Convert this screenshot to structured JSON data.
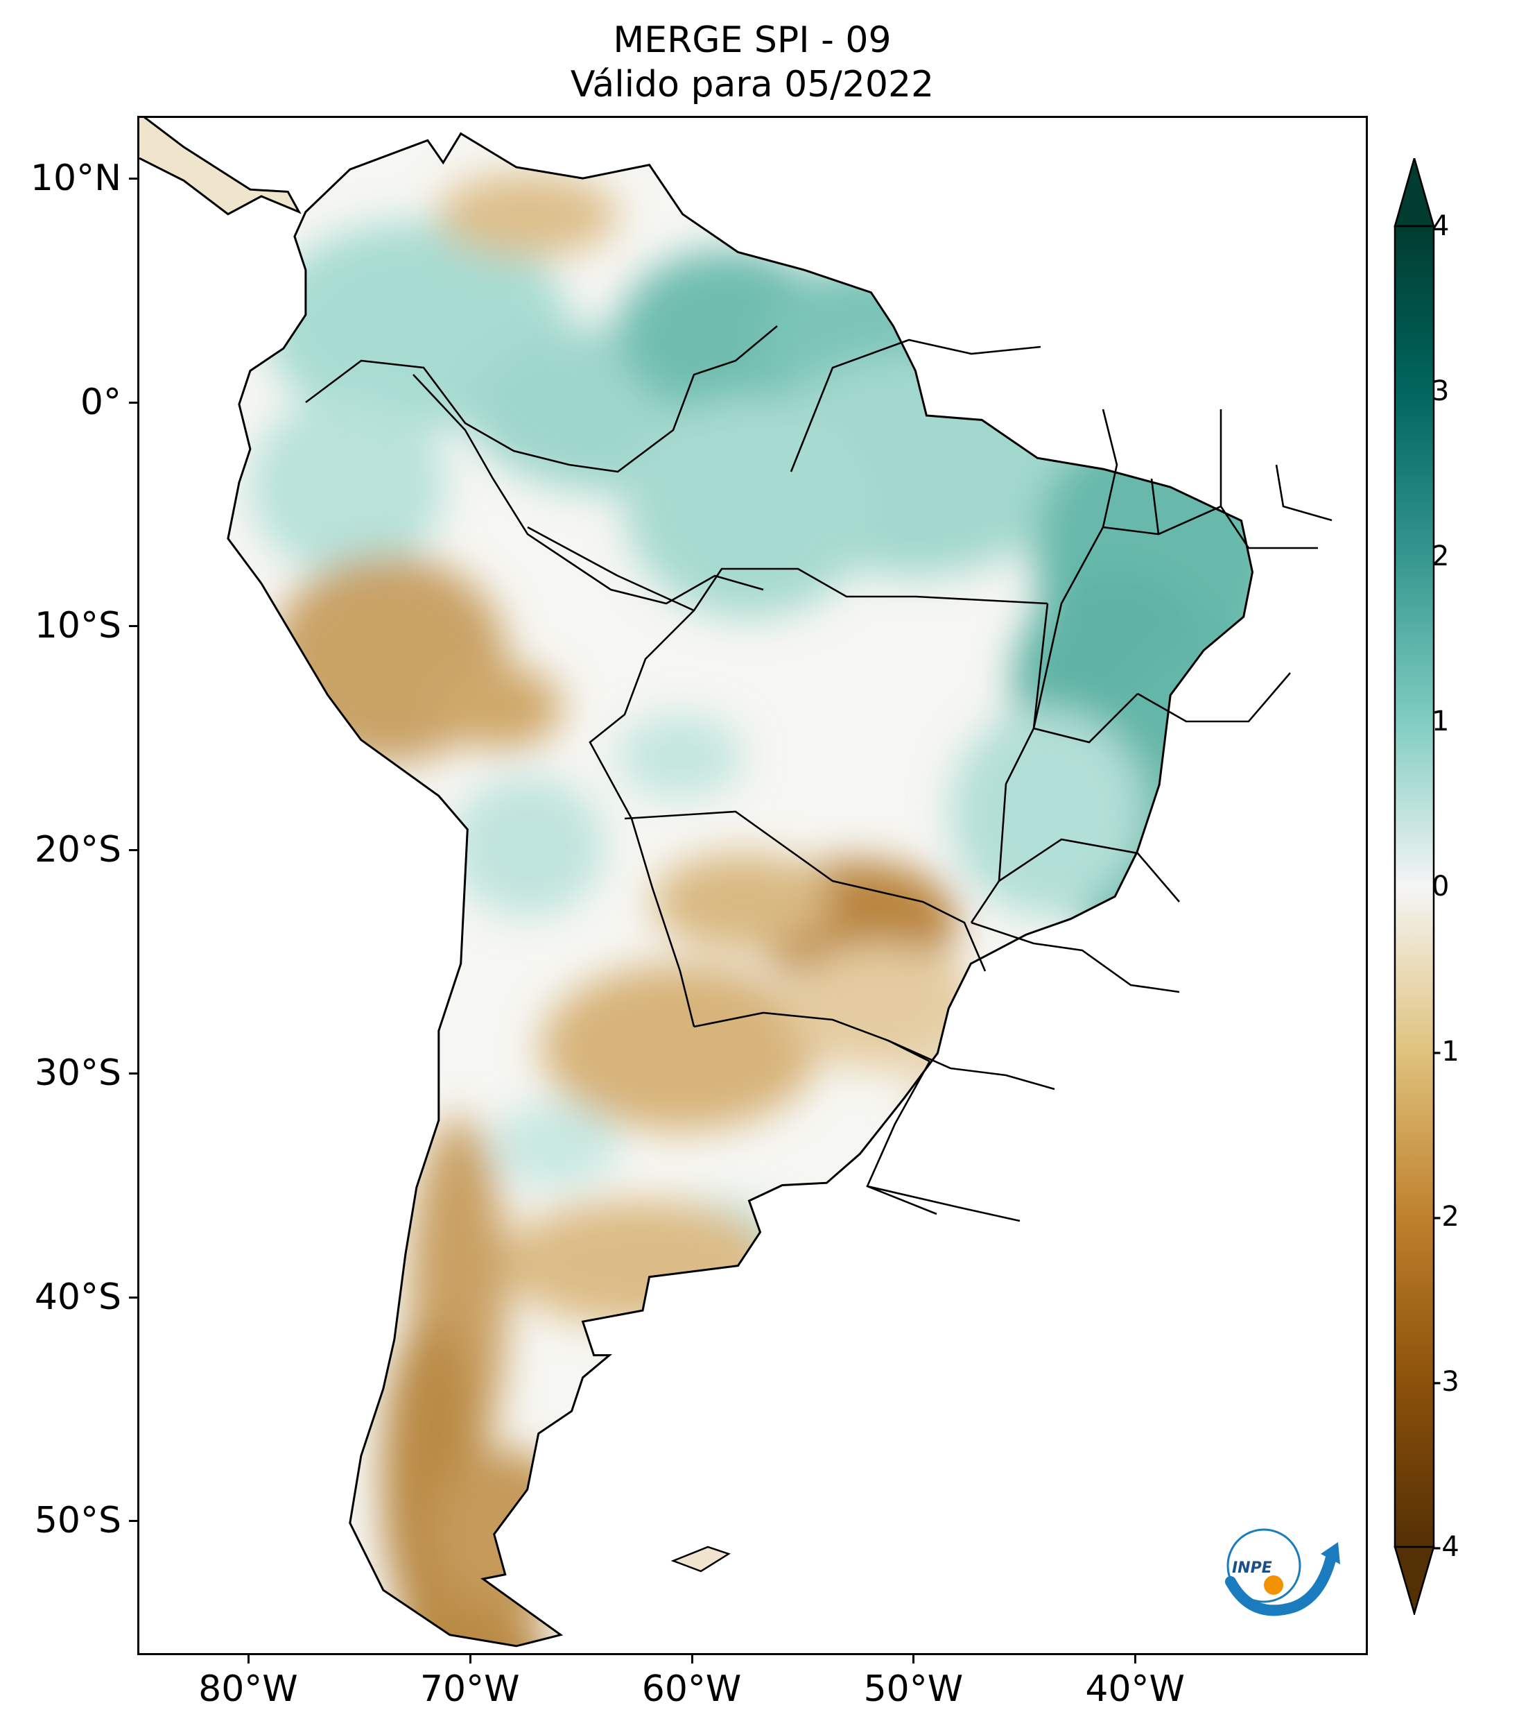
{
  "title": {
    "line1": "MERGE   SPI - 09",
    "line2": "Válido para 05/2022"
  },
  "map": {
    "lat_ticks": [
      {
        "value": 10,
        "label": "10°N"
      },
      {
        "value": 0,
        "label": "0°"
      },
      {
        "value": -10,
        "label": "10°S"
      },
      {
        "value": -20,
        "label": "20°S"
      },
      {
        "value": -30,
        "label": "30°S"
      },
      {
        "value": -40,
        "label": "40°S"
      },
      {
        "value": -50,
        "label": "50°S"
      }
    ],
    "lon_ticks": [
      {
        "value": -80,
        "label": "80°W"
      },
      {
        "value": -70,
        "label": "70°W"
      },
      {
        "value": -60,
        "label": "60°W"
      },
      {
        "value": -50,
        "label": "50°W"
      },
      {
        "value": -40,
        "label": "40°W"
      }
    ],
    "extent": {
      "lon_min": -85,
      "lon_max": -29.5,
      "lat_min": -56,
      "lat_max": 12.8
    },
    "region": "South America",
    "variable": "SPI-09 (Standardized Precipitation Index, 9 months)",
    "colormap": "BrBG"
  },
  "colorbar": {
    "min": -4,
    "max": 4,
    "extend": "both",
    "ticks": [
      "4",
      "3",
      "2",
      "1",
      "0",
      "-1",
      "-2",
      "-3",
      "-4"
    ],
    "colors": {
      "dry_extreme": "#543005",
      "dry": "#bf812d",
      "neutral": "#f7f7f7",
      "wet": "#80cdc1",
      "wet_extreme": "#003c30"
    }
  },
  "logo": {
    "text": "INPE"
  }
}
